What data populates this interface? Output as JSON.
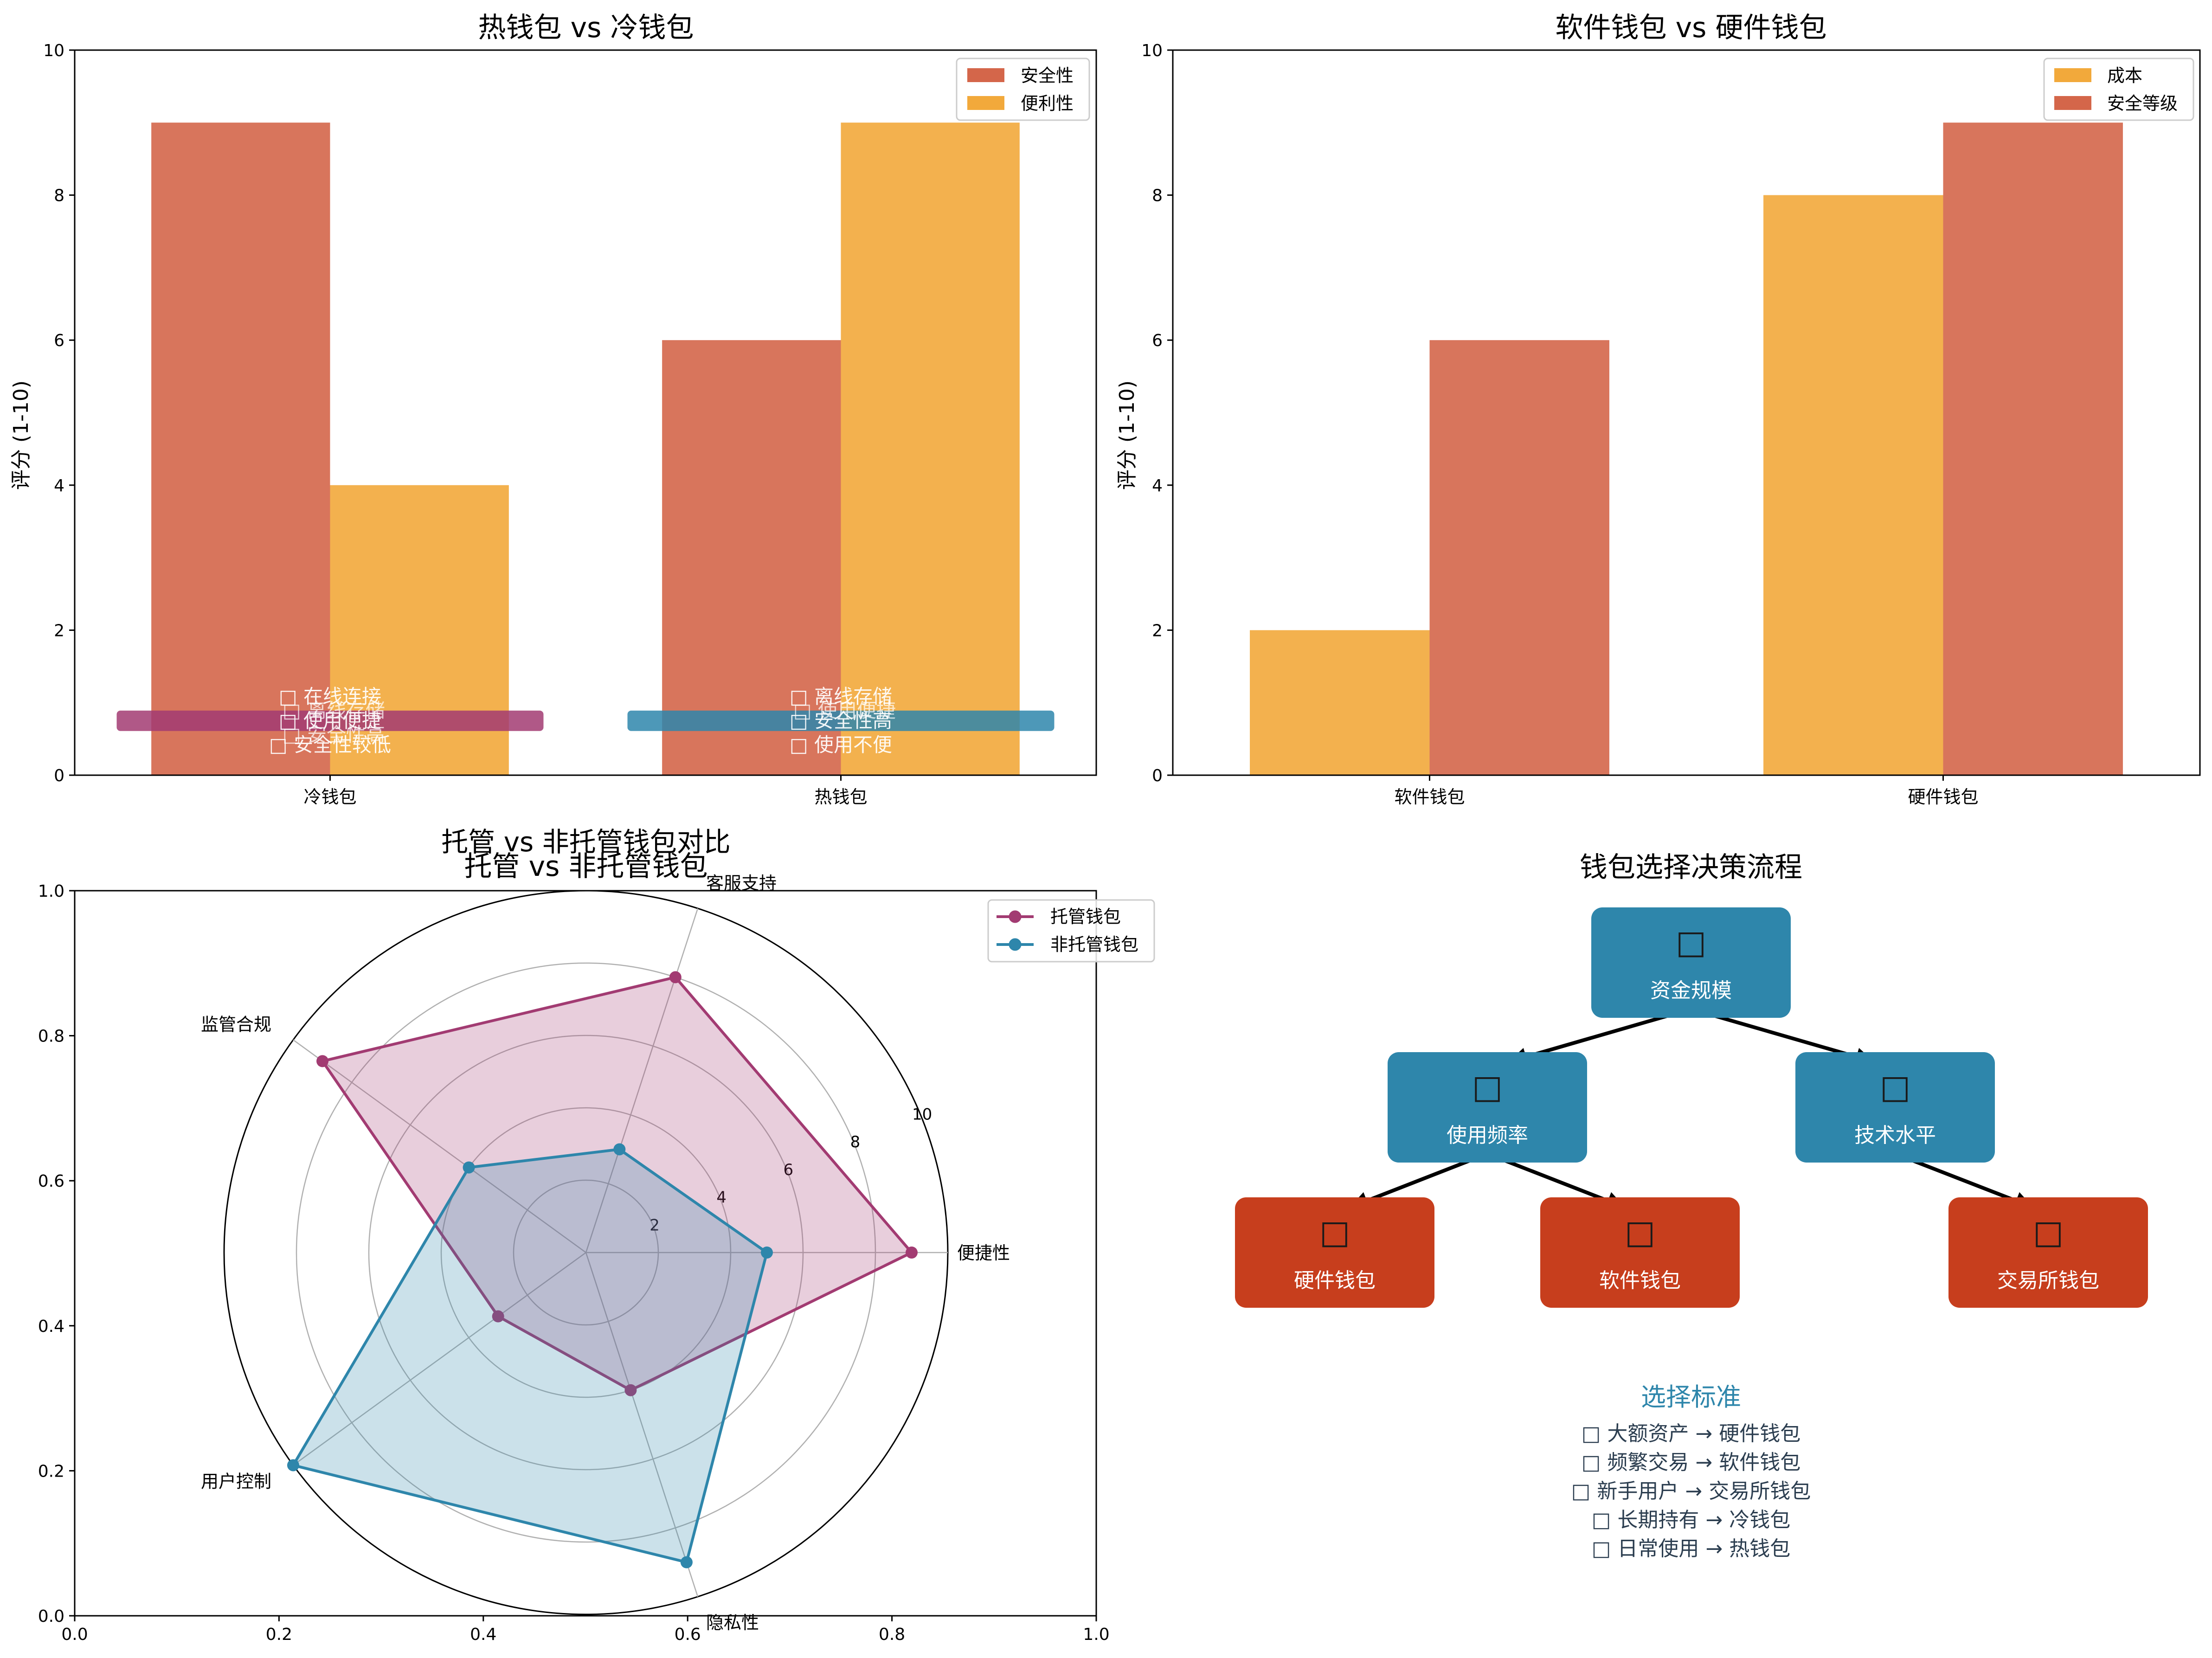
{
  "colors": {
    "security": "#d4664a",
    "convenience": "#f2a93b",
    "cost": "#f2a93b",
    "custodial": "#a23b72",
    "noncustodial": "#2e86ab",
    "box_blue": "#2e86ab",
    "box_red": "#c73e1d",
    "criteria_title": "#2e86ab",
    "criteria_text": "#2c3e50"
  },
  "chart_data": [
    {
      "type": "bar",
      "title": "热钱包 vs 冷钱包",
      "ylabel": "评分 (1-10)",
      "ylim": [
        0,
        10
      ],
      "yticks": [
        "0",
        "2",
        "4",
        "6",
        "8",
        "10"
      ],
      "categories": [
        "冷钱包",
        "热钱包"
      ],
      "series": [
        {
          "name": "安全性",
          "values": [
            9,
            6
          ]
        },
        {
          "name": "便利性",
          "values": [
            4,
            9
          ]
        }
      ],
      "legend": "top-right",
      "annotations": [
        {
          "category": "冷钱包",
          "band_value": 0.75,
          "lines": [
            "□ 在线连接",
            "□ 使用便捷",
            "□ 安全性较低"
          ],
          "overlay_lines": [
            "□ 离线存储",
            "□ 安全性高"
          ]
        },
        {
          "category": "热钱包",
          "band_value": 0.75,
          "lines": [
            "□ 离线存储",
            "□ 安全性高",
            "□ 使用不便"
          ],
          "overlay_lines": [
            "□ 使用便捷"
          ]
        }
      ]
    },
    {
      "type": "bar",
      "title": "软件钱包 vs 硬件钱包",
      "ylabel": "评分 (1-10)",
      "ylim": [
        0,
        10
      ],
      "yticks": [
        "0",
        "2",
        "4",
        "6",
        "8",
        "10"
      ],
      "categories": [
        "软件钱包",
        "硬件钱包"
      ],
      "series": [
        {
          "name": "成本",
          "values": [
            2,
            8
          ]
        },
        {
          "name": "安全等级",
          "values": [
            6,
            9
          ]
        }
      ],
      "legend": "top-right"
    },
    {
      "type": "radar",
      "title": "托管 vs 非托管钱包",
      "suptitle": "托管 vs 非托管钱包对比",
      "axes": [
        "便捷性",
        "客服支持",
        "监管合规",
        "用户控制",
        "隐私性"
      ],
      "rlim": [
        0,
        10
      ],
      "rticks": [
        "2",
        "4",
        "6",
        "8",
        "10"
      ],
      "frame_ticks": [
        "0.0",
        "0.2",
        "0.4",
        "0.6",
        "0.8",
        "1.0"
      ],
      "series": [
        {
          "name": "托管钱包",
          "values": [
            9,
            8,
            9,
            3,
            4
          ]
        },
        {
          "name": "非托管钱包",
          "values": [
            5,
            3,
            4,
            10,
            9
          ]
        }
      ],
      "legend": "top-right"
    }
  ],
  "flow": {
    "title": "钱包选择决策流程",
    "icon_glyph": "□",
    "nodes": [
      {
        "label": "资金规模",
        "kind": "blue"
      },
      {
        "label": "使用频率",
        "kind": "blue"
      },
      {
        "label": "技术水平",
        "kind": "blue"
      },
      {
        "label": "硬件钱包",
        "kind": "red"
      },
      {
        "label": "软件钱包",
        "kind": "red"
      },
      {
        "label": "交易所钱包",
        "kind": "red"
      }
    ],
    "criteria_title": "选择标准",
    "criteria": [
      "□ 大额资产 → 硬件钱包",
      "□ 频繁交易 → 软件钱包",
      "□ 新手用户 → 交易所钱包",
      "□ 长期持有 → 冷钱包",
      "□ 日常使用 → 热钱包"
    ]
  }
}
